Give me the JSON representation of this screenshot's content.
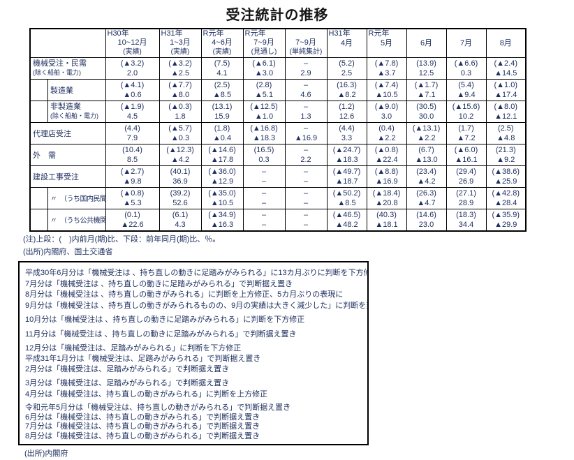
{
  "title": "受注統計の推移",
  "table": {
    "header": {
      "quarter_cols": [
        {
          "era": "H30年",
          "period": "10~12月",
          "qualifier": "(実績)"
        },
        {
          "era": "H31年",
          "period": "1~3月",
          "qualifier": "(実績)"
        },
        {
          "era": "R元年",
          "period": "4~6月",
          "qualifier": "(実績)"
        },
        {
          "era": "R元年",
          "period": "7~9月",
          "qualifier": "(見通し)"
        },
        {
          "era": "",
          "period": "7~9月",
          "qualifier": "(単純集計)"
        }
      ],
      "month_cols": [
        {
          "era": "H31年",
          "month": "4月"
        },
        {
          "era": "R元年",
          "month": "5月"
        },
        {
          "era": "",
          "month": "6月"
        },
        {
          "era": "",
          "month": "7月"
        },
        {
          "era": "",
          "month": "8月"
        }
      ]
    },
    "rows": [
      {
        "label": "機械受注・民需",
        "sublabel": "(除く船舶・電力)",
        "indent": false,
        "upper": [
          "(▲3.2)",
          "(▲3.2)",
          "(7.5)",
          "(▲6.1)",
          "–",
          "(5.2)",
          "(▲7.8)",
          "(13.9)",
          "(▲6.6)",
          "(▲2.4)"
        ],
        "lower": [
          "2.0",
          "▲2.5",
          "4.1",
          "▲3.0",
          "2.9",
          "2.5",
          "▲3.7",
          "12.5",
          "0.3",
          "▲14.5"
        ]
      },
      {
        "label": "製造業",
        "sublabel": "",
        "indent": true,
        "upper": [
          "(▲4.1)",
          "(▲7.7)",
          "(2.5)",
          "(2.8)",
          "–",
          "(16.3)",
          "(▲7.4)",
          "(▲1.7)",
          "(5.4)",
          "(▲1.0)"
        ],
        "lower": [
          "▲0.6",
          "▲8.0",
          "▲8.5",
          "▲5.1",
          "4.6",
          "▲8.2",
          "▲10.5",
          "▲7.1",
          "▲9.4",
          "▲17.4"
        ]
      },
      {
        "label": "非製造業",
        "sublabel": "(除く船舶・電力)",
        "indent": true,
        "upper": [
          "(▲1.9)",
          "(▲0.3)",
          "(13.1)",
          "(▲12.5)",
          "–",
          "(1.2)",
          "(▲9.0)",
          "(30.5)",
          "(▲15.6)",
          "(▲8.0)"
        ],
        "lower": [
          "4.5",
          "1.8",
          "15.9",
          "▲1.0",
          "1.3",
          "12.6",
          "3.0",
          "30.0",
          "10.2",
          "▲12.1"
        ]
      },
      {
        "label": "代理店受注",
        "sublabel": "",
        "indent": false,
        "upper": [
          "(4.4)",
          "(▲5.7)",
          "(1.8)",
          "(▲16.8)",
          "–",
          "(4.4)",
          "(0.4)",
          "(▲13.1)",
          "(1.7)",
          "(2.5)"
        ],
        "lower": [
          "7.9",
          "▲0.3",
          "▲0.4",
          "▲18.3",
          "▲16.9",
          "3.3",
          "▲2.2",
          "▲2.2",
          "▲7.2",
          "▲4.8"
        ]
      },
      {
        "label": "外　需",
        "sublabel": "",
        "indent": false,
        "upper": [
          "(10.4)",
          "(▲12.3)",
          "(▲14.6)",
          "(16.5)",
          "–",
          "(▲24.7)",
          "(▲0.8)",
          "(6.7)",
          "(▲6.0)",
          "(21.3)"
        ],
        "lower": [
          "8.5",
          "▲4.2",
          "▲17.8",
          "0.3",
          "2.2",
          "▲18.3",
          "▲22.4",
          "▲13.0",
          "▲16.1",
          "▲9.2"
        ]
      },
      {
        "label": "建設工事受注",
        "sublabel": "",
        "indent": false,
        "upper": [
          "(▲2.7)",
          "(40.1)",
          "(▲36.0)",
          "–",
          "–",
          "(▲49.7)",
          "(▲8.8)",
          "(23.4)",
          "(29.4)",
          "(▲38.6)"
        ],
        "lower": [
          "▲9.8",
          "36.9",
          "▲12.9",
          "–",
          "–",
          "▲18.7",
          "▲16.9",
          "▲4.2",
          "26.9",
          "▲25.9"
        ]
      },
      {
        "label": "〃　（うち国内民間分）",
        "sublabel": "",
        "indent": true,
        "upper": [
          "(▲0.8)",
          "(39.2)",
          "(▲35.0)",
          "–",
          "–",
          "(▲50.2)",
          "(▲18.4)",
          "(26.3)",
          "(27.1)",
          "(▲42.8)"
        ],
        "lower": [
          "▲5.3",
          "52.6",
          "▲10.5",
          "–",
          "–",
          "▲8.5",
          "▲20.8",
          "▲4.7",
          "28.9",
          "▲28.4"
        ]
      },
      {
        "label": "〃　（うち公共機関分）",
        "sublabel": "",
        "indent": true,
        "upper": [
          "(0.1)",
          "(6.1)",
          "(▲34.9)",
          "–",
          "–",
          "(▲46.5)",
          "(40.3)",
          "(14.6)",
          "(18.3)",
          "(▲35.9)"
        ],
        "lower": [
          "▲22.6",
          "4.3",
          "▲16.3",
          "–",
          "–",
          "▲48.2",
          "▲18.1",
          "23.0",
          "34.4",
          "▲29.9"
        ]
      }
    ]
  },
  "notes": [
    "(注)上段：(　)内前月(期)比、下段：前年同月(期)比、％。",
    "(出所)内閣府、国土交通省"
  ],
  "box": {
    "groups": [
      [
        "平成30年6月分は「機械受注は 、持ち直しの動きに足踏みがみられる」に13カ月ぶりに判断を下方修正",
        "7月分は「機械受注は 、持ち直しの動きに足踏みがみられる」で判断据え置き",
        "8月分は「機械受注は 、持ち直しの動きがみられる」に判断を上方修正、5カ月ぶりの表現に",
        "9月分は「機械受注は 、持ち直しの動きがみられるものの、9月の実績は大きく減少した」に判断を変更"
      ],
      [
        "10月分は「機械受注は 、持ち直しの動きに足踏みがみられる」に判断を下方修正"
      ],
      [
        "11月分は「機械受注は 、持ち直しの動きに足踏みがみられる」で判断据え置き"
      ],
      [
        "12月分は「機械受注は、足踏みがみられる」に判断を下方修正",
        "平成31年1月分は「機械受注は、足踏みがみられる」で判断据え置き",
        "2月分は「機械受注は、足踏みがみられる」で判断据え置き"
      ],
      [
        "3月分は「機械受注は、足踏みがみられる」で判断据え置き",
        "4月分は「機械受注は、持ち直しの動きがみられる」に判断を上方修正"
      ],
      [
        "令和元年5月分は「機械受注は、持ち直しの動きがみられる」で判断据え置き",
        "6月分は「機械受注は、持ち直しの動きがみられる」で判断据え置き",
        "7月分は「機械受注は、持ち直しの動きがみられる」で判断据え置き",
        "8月分は「機械受注は、持ち直しの動きがみられる」で判断据え置き"
      ]
    ]
  },
  "source_bottom": "(出所)内閣府"
}
